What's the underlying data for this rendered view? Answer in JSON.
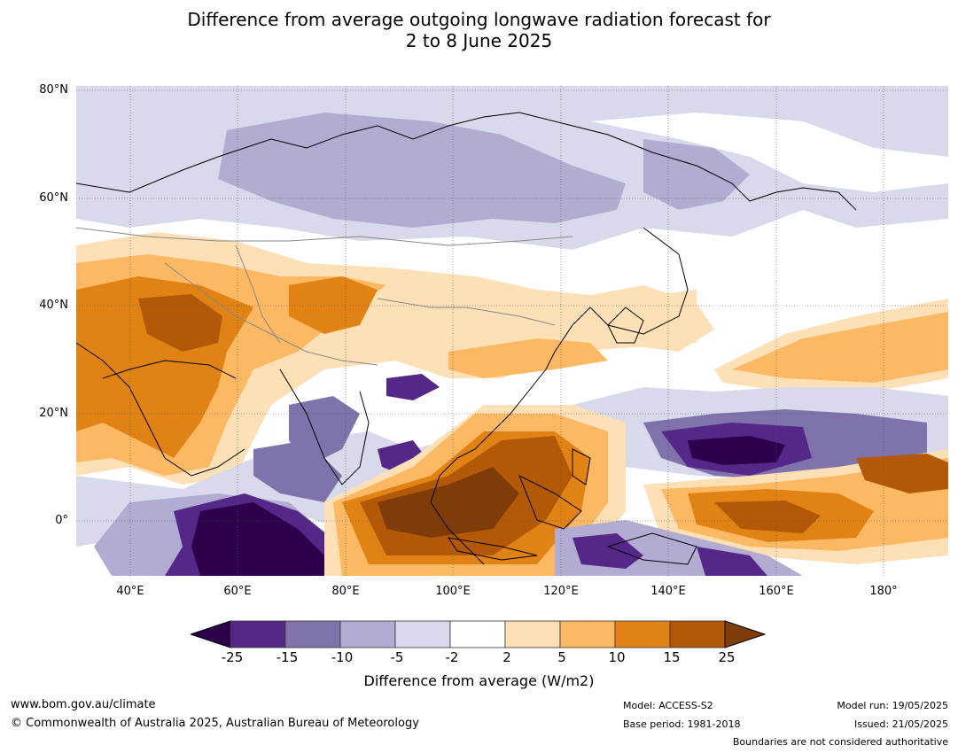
{
  "title": {
    "line1": "Difference from average outgoing longwave radiation forecast for",
    "line2": "2 to 8 June 2025"
  },
  "map": {
    "lat_labels": [
      "80°N",
      "60°N",
      "40°N",
      "20°N",
      "0°"
    ],
    "lon_labels": [
      "40°E",
      "60°E",
      "80°E",
      "100°E",
      "120°E",
      "140°E",
      "160°E",
      "180°"
    ],
    "extent": {
      "lon_min": 30,
      "lon_max": 192,
      "lat_min": -10,
      "lat_max": 81
    },
    "gridlines": true
  },
  "colorbar": {
    "ticks": [
      "-25",
      "-15",
      "-10",
      "-5",
      "-2",
      "2",
      "5",
      "10",
      "15",
      "25"
    ],
    "colors": [
      "#2d004b",
      "#542788",
      "#8073ac",
      "#b2abd2",
      "#d8daeb",
      "#ffffff",
      "#fee0b6",
      "#fdb863",
      "#e08214",
      "#b35806",
      "#7f3b08"
    ],
    "label": "Difference from average (W/m2)"
  },
  "footer": {
    "url": "www.bom.gov.au/climate",
    "copyright": "© Commonwealth of Australia 2025, Australian Bureau of Meteorology",
    "model": "Model: ACCESS-S2",
    "base_period": "Base period: 1981-2018",
    "model_run": "Model run: 19/05/2025",
    "issued": "Issued: 21/05/2025",
    "disclaimer": "Boundaries are not considered authoritative"
  }
}
